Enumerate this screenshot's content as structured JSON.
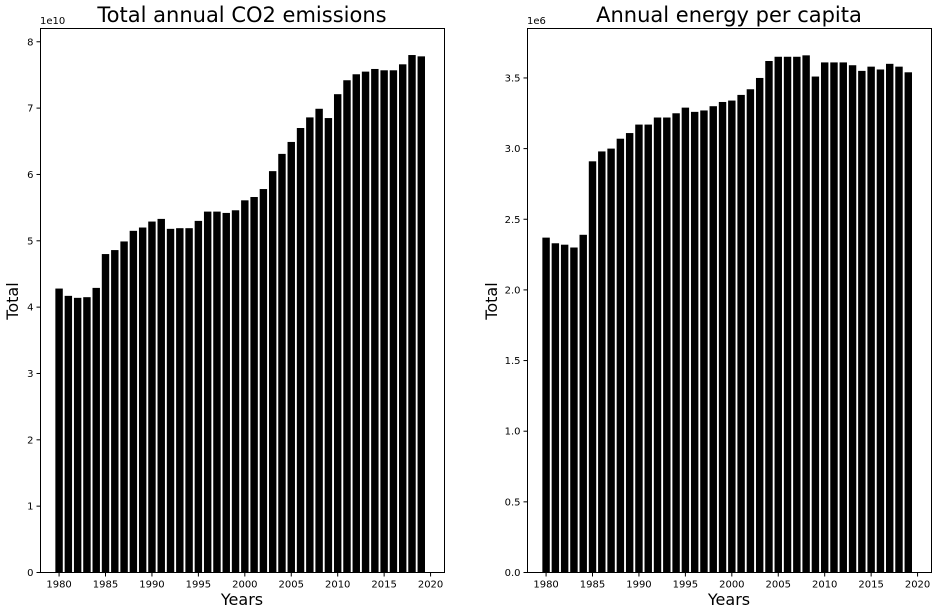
{
  "chart_data": [
    {
      "type": "bar",
      "title": "Total annual CO2 emissions",
      "xlabel": "Years",
      "ylabel": "Total",
      "y_offset_label": "1e10",
      "y_scale": 10000000000.0,
      "xlim": [
        1978,
        2021.5
      ],
      "ylim": [
        0,
        8.2
      ],
      "xticks": [
        1980,
        1985,
        1990,
        1995,
        2000,
        2005,
        2010,
        2015,
        2020
      ],
      "yticks": [
        0,
        1,
        2,
        3,
        4,
        5,
        6,
        7,
        8
      ],
      "grid": false,
      "bar_color": "#000000",
      "x": [
        1980,
        1981,
        1982,
        1983,
        1984,
        1985,
        1986,
        1987,
        1988,
        1989,
        1990,
        1991,
        1992,
        1993,
        1994,
        1995,
        1996,
        1997,
        1998,
        1999,
        2000,
        2001,
        2002,
        2003,
        2004,
        2005,
        2006,
        2007,
        2008,
        2009,
        2010,
        2011,
        2012,
        2013,
        2014,
        2015,
        2016,
        2017,
        2018,
        2019
      ],
      "values": [
        4.28,
        4.17,
        4.14,
        4.15,
        4.29,
        4.8,
        4.86,
        4.99,
        5.15,
        5.2,
        5.29,
        5.33,
        5.18,
        5.19,
        5.19,
        5.3,
        5.44,
        5.44,
        5.42,
        5.46,
        5.61,
        5.66,
        5.78,
        6.05,
        6.31,
        6.49,
        6.7,
        6.86,
        6.99,
        6.85,
        7.21,
        7.42,
        7.51,
        7.55,
        7.59,
        7.57,
        7.57,
        7.66,
        7.8,
        7.78
      ]
    },
    {
      "type": "bar",
      "title": "Annual energy per capita",
      "xlabel": "Years",
      "ylabel": "Total",
      "y_offset_label": "1e6",
      "y_scale": 1000000.0,
      "xlim": [
        1978,
        2021.5
      ],
      "ylim": [
        0,
        3.85
      ],
      "xticks": [
        1980,
        1985,
        1990,
        1995,
        2000,
        2005,
        2010,
        2015,
        2020
      ],
      "yticks": [
        0.0,
        0.5,
        1.0,
        1.5,
        2.0,
        2.5,
        3.0,
        3.5
      ],
      "ytick_labels": [
        "0.0",
        "0.5",
        "1.0",
        "1.5",
        "2.0",
        "2.5",
        "3.0",
        "3.5"
      ],
      "grid": false,
      "bar_color": "#000000",
      "x": [
        1980,
        1981,
        1982,
        1983,
        1984,
        1985,
        1986,
        1987,
        1988,
        1989,
        1990,
        1991,
        1992,
        1993,
        1994,
        1995,
        1996,
        1997,
        1998,
        1999,
        2000,
        2001,
        2002,
        2003,
        2004,
        2005,
        2006,
        2007,
        2008,
        2009,
        2010,
        2011,
        2012,
        2013,
        2014,
        2015,
        2016,
        2017,
        2018,
        2019
      ],
      "values": [
        2.37,
        2.33,
        2.32,
        2.3,
        2.39,
        2.91,
        2.98,
        3.0,
        3.07,
        3.11,
        3.17,
        3.17,
        3.22,
        3.22,
        3.25,
        3.29,
        3.26,
        3.27,
        3.3,
        3.33,
        3.34,
        3.38,
        3.42,
        3.5,
        3.62,
        3.65,
        3.65,
        3.65,
        3.66,
        3.51,
        3.61,
        3.61,
        3.61,
        3.59,
        3.55,
        3.58,
        3.56,
        3.6,
        3.58,
        3.54
      ]
    }
  ]
}
